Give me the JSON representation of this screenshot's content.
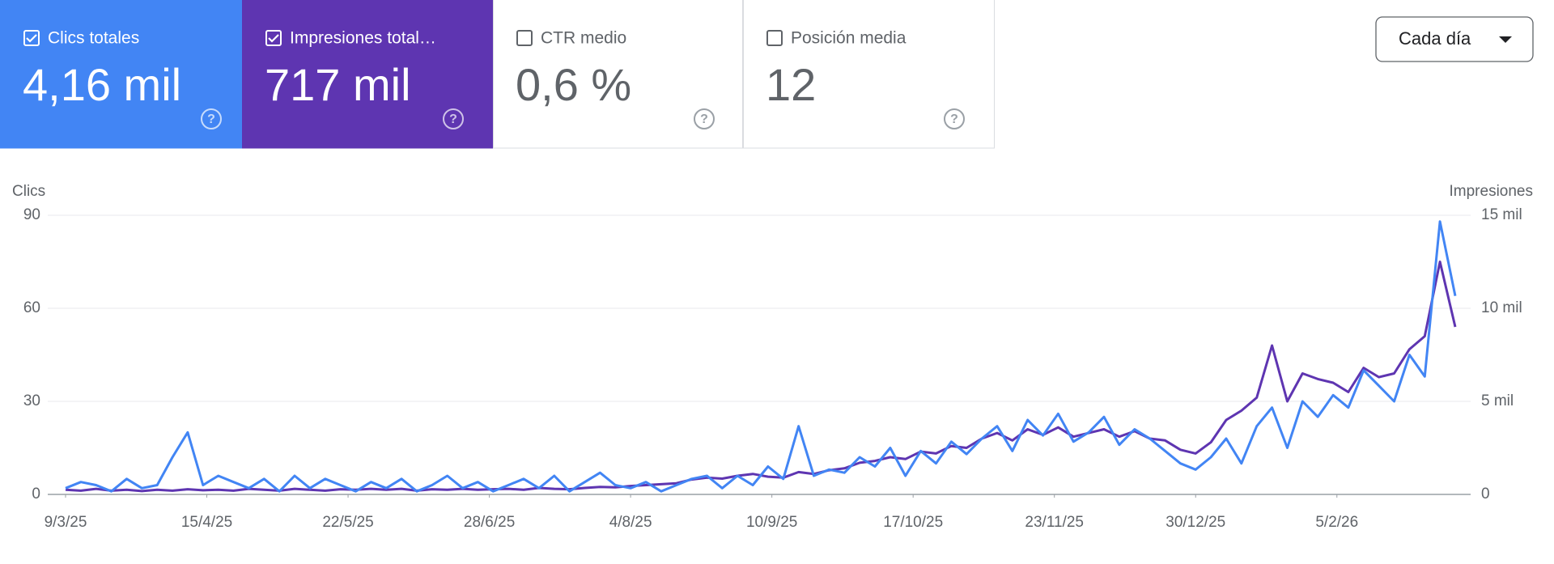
{
  "cards": [
    {
      "label": "Clics totales",
      "value": "4,16 mil",
      "checked": true,
      "color": "#4285f4"
    },
    {
      "label": "Impresiones total…",
      "value": "717 mil",
      "checked": true,
      "color": "#5e35b1"
    },
    {
      "label": "CTR medio",
      "value": "0,6 %",
      "checked": false,
      "color": "#ffffff"
    },
    {
      "label": "Posición media",
      "value": "12",
      "checked": false,
      "color": "#ffffff"
    }
  ],
  "granularity_button": "Cada día",
  "chart_data": {
    "type": "line",
    "ylabel": "Clics",
    "y2label": "Impresiones",
    "grid": true,
    "x": [
      "9/3/25",
      "13/3/25",
      "17/3/25",
      "21/3/25",
      "25/3/25",
      "29/3/25",
      "2/4/25",
      "6/4/25",
      "10/4/25",
      "14/4/25",
      "18/4/25",
      "22/4/25",
      "26/4/25",
      "30/4/25",
      "4/5/25",
      "8/5/25",
      "12/5/25",
      "16/5/25",
      "20/5/25",
      "24/5/25",
      "28/5/25",
      "1/6/25",
      "5/6/25",
      "9/6/25",
      "13/6/25",
      "17/6/25",
      "21/6/25",
      "25/6/25",
      "29/6/25",
      "3/7/25",
      "7/7/25",
      "11/7/25",
      "15/7/25",
      "19/7/25",
      "23/7/25",
      "27/7/25",
      "31/7/25",
      "4/8/25",
      "8/8/25",
      "12/8/25",
      "16/8/25",
      "20/8/25",
      "24/8/25",
      "28/8/25",
      "1/9/25",
      "5/9/25",
      "9/9/25",
      "13/9/25",
      "17/9/25",
      "21/9/25",
      "25/9/25",
      "29/9/25",
      "3/10/25",
      "7/10/25",
      "11/10/25",
      "15/10/25",
      "19/10/25",
      "23/10/25",
      "27/10/25",
      "31/10/25",
      "4/11/25",
      "8/11/25",
      "12/11/25",
      "16/11/25",
      "20/11/25",
      "24/11/25",
      "28/11/25",
      "2/12/25",
      "6/12/25",
      "10/12/25",
      "14/12/25",
      "18/12/25",
      "22/12/25",
      "26/12/25",
      "30/12/25",
      "3/1/26",
      "7/1/26",
      "11/1/26",
      "15/1/26",
      "19/1/26",
      "23/1/26",
      "27/1/26",
      "31/1/26",
      "4/2/26",
      "8/2/26",
      "12/2/26",
      "16/2/26",
      "20/2/26",
      "24/2/26",
      "28/2/26",
      "4/3/26",
      "8/3/26"
    ],
    "xticks": [
      "9/3/25",
      "15/4/25",
      "22/5/25",
      "28/6/25",
      "4/8/25",
      "10/9/25",
      "17/10/25",
      "23/11/25",
      "30/12/25",
      "5/2/26"
    ],
    "ylim": [
      0,
      90
    ],
    "yticks": [
      0,
      30,
      60,
      90
    ],
    "y2lim": [
      0,
      15000
    ],
    "y2ticks": [
      0,
      {
        "value": 5000,
        "label": "5 mil"
      },
      {
        "value": 10000,
        "label": "10 mil"
      },
      {
        "value": 15000,
        "label": "15 mil"
      }
    ],
    "series": [
      {
        "color": "#5e35b1",
        "axis": "y2",
        "values": [
          250,
          200,
          300,
          200,
          250,
          180,
          250,
          200,
          280,
          220,
          250,
          200,
          300,
          250,
          200,
          300,
          250,
          200,
          280,
          250,
          300,
          250,
          300,
          200,
          280,
          250,
          300,
          250,
          280,
          300,
          250,
          350,
          300,
          280,
          350,
          400,
          380,
          450,
          500,
          550,
          600,
          800,
          900,
          850,
          1000,
          1100,
          950,
          900,
          1200,
          1100,
          1300,
          1400,
          1700,
          1800,
          2000,
          1900,
          2300,
          2200,
          2600,
          2500,
          3000,
          3300,
          2900,
          3500,
          3200,
          3600,
          3100,
          3300,
          3500,
          3100,
          3400,
          3000,
          2900,
          2400,
          2200,
          2800,
          4000,
          4500,
          5200,
          8000,
          5000,
          6500,
          6200,
          6000,
          5500,
          6800,
          6300,
          6500,
          7800,
          8500,
          12500,
          9000
        ]
      },
      {
        "color": "#4285f4",
        "values": [
          2,
          4,
          3,
          1,
          5,
          2,
          3,
          12,
          20,
          3,
          6,
          4,
          2,
          5,
          1,
          6,
          2,
          5,
          3,
          1,
          4,
          2,
          5,
          1,
          3,
          6,
          2,
          4,
          1,
          3,
          5,
          2,
          6,
          1,
          4,
          7,
          3,
          2,
          4,
          1,
          3,
          5,
          6,
          2,
          6,
          3,
          9,
          5,
          22,
          6,
          8,
          7,
          12,
          9,
          15,
          6,
          14,
          10,
          17,
          13,
          18,
          22,
          14,
          24,
          19,
          26,
          17,
          20,
          25,
          16,
          21,
          18,
          14,
          10,
          8,
          12,
          18,
          10,
          22,
          28,
          15,
          30,
          25,
          32,
          28,
          40,
          35,
          30,
          45,
          38,
          88,
          64
        ]
      }
    ]
  }
}
